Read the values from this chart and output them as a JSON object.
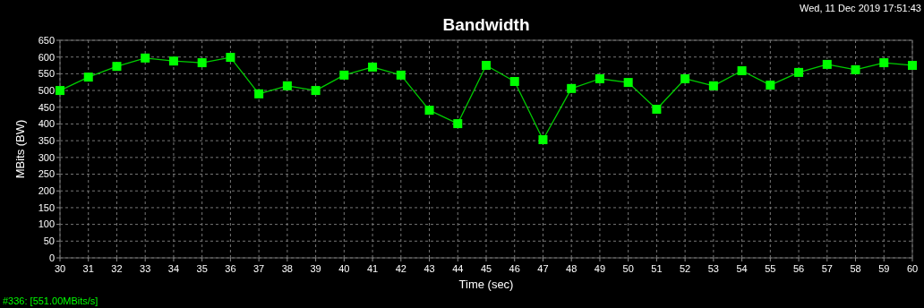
{
  "chart_data": {
    "type": "line",
    "title": "Bandwidth",
    "xlabel": "Time (sec)",
    "ylabel": "MBits (BW)",
    "annotations": [
      "Wed, 11 Dec 2019 17:51:43",
      "#336: [551.00MBits/s]"
    ],
    "x": [
      30,
      31,
      32,
      33,
      34,
      35,
      36,
      37,
      38,
      39,
      40,
      41,
      42,
      43,
      44,
      45,
      46,
      47,
      48,
      49,
      50,
      51,
      52,
      53,
      54,
      55,
      56,
      57,
      58,
      59,
      60
    ],
    "series": [
      {
        "color": "#00ff00",
        "values": [
          500,
          540,
          572,
          597,
          588,
          583,
          599,
          490,
          514,
          500,
          546,
          570,
          546,
          441,
          401,
          575,
          527,
          353,
          506,
          535,
          524,
          444,
          535,
          514,
          559,
          516,
          554,
          578,
          562,
          583,
          575
        ]
      }
    ],
    "xlim": [
      30,
      60
    ],
    "xticks": [
      30,
      31,
      32,
      33,
      34,
      35,
      36,
      37,
      38,
      39,
      40,
      41,
      42,
      43,
      44,
      45,
      46,
      47,
      48,
      49,
      50,
      51,
      52,
      53,
      54,
      55,
      56,
      57,
      58,
      59,
      60
    ],
    "ylim": [
      0,
      650
    ],
    "yticks": [
      0,
      50,
      100,
      150,
      200,
      250,
      300,
      350,
      400,
      450,
      500,
      550,
      600,
      650
    ],
    "grid": true,
    "marker": "square",
    "line_style": "solid"
  }
}
